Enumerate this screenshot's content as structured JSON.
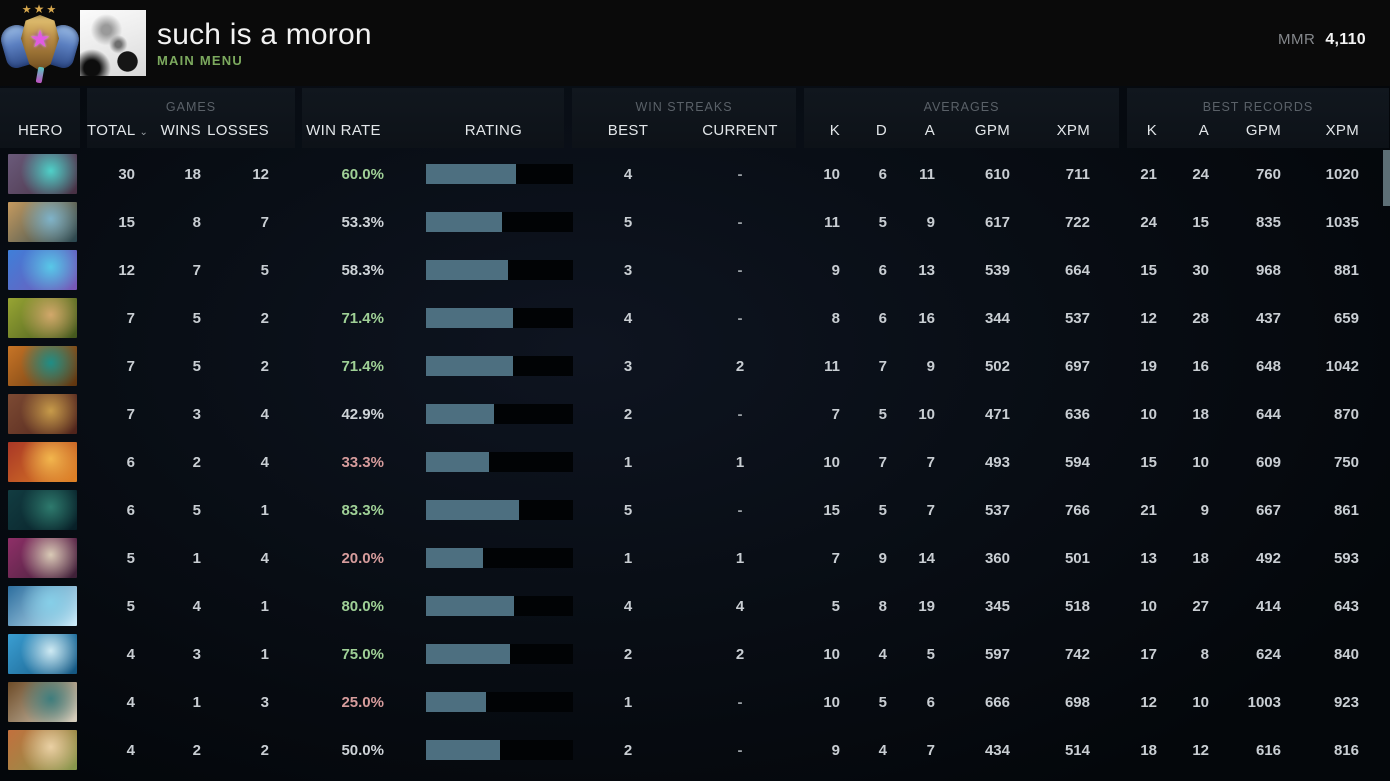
{
  "header": {
    "title": "such is a moron",
    "subtitle": "MAIN MENU",
    "mmr_label": "MMR",
    "mmr_value": "4,110",
    "rank_medal": "ancient-medal-3-stars"
  },
  "colors": {
    "green": "#9fd096",
    "red": "#d69c9c",
    "bar_fill": "#4d6f80",
    "menu_green": "#7ca95e"
  },
  "table": {
    "groups": {
      "games": "GAMES",
      "win_streaks": "WIN STREAKS",
      "averages": "AVERAGES",
      "best_records": "BEST RECORDS"
    },
    "columns": {
      "hero": "HERO",
      "total": "TOTAL",
      "wins": "WINS",
      "losses": "LOSSES",
      "win_rate": "WIN RATE",
      "rating": "RATING",
      "best": "BEST",
      "current": "CURRENT",
      "k": "K",
      "d": "D",
      "a": "A",
      "gpm": "GPM",
      "xpm": "XPM"
    },
    "sorted_by": "total",
    "rows": [
      {
        "hero": "hero-1",
        "portrait": [
          "#6a5a7a",
          "#4fd0c8",
          "#473043"
        ],
        "total": "30",
        "wins": "18",
        "losses": "12",
        "win_rate": "60.0%",
        "tone": "green",
        "rating_pct": 61,
        "streak_best": "4",
        "streak_current": "-",
        "avg_k": "10",
        "avg_d": "6",
        "avg_a": "11",
        "avg_gpm": "610",
        "avg_xpm": "711",
        "best_k": "21",
        "best_a": "24",
        "best_gpm": "760",
        "best_xpm": "1020"
      },
      {
        "hero": "hero-2",
        "portrait": [
          "#c59a5f",
          "#7fb3c9",
          "#27454f"
        ],
        "total": "15",
        "wins": "8",
        "losses": "7",
        "win_rate": "53.3%",
        "tone": "neutral",
        "rating_pct": 52,
        "streak_best": "5",
        "streak_current": "-",
        "avg_k": "11",
        "avg_d": "5",
        "avg_a": "9",
        "avg_gpm": "617",
        "avg_xpm": "722",
        "best_k": "24",
        "best_a": "15",
        "best_gpm": "835",
        "best_xpm": "1035"
      },
      {
        "hero": "hero-3",
        "portrait": [
          "#3f7fd9",
          "#58c8e8",
          "#7a56b5"
        ],
        "total": "12",
        "wins": "7",
        "losses": "5",
        "win_rate": "58.3%",
        "tone": "neutral",
        "rating_pct": 56,
        "streak_best": "3",
        "streak_current": "-",
        "avg_k": "9",
        "avg_d": "6",
        "avg_a": "13",
        "avg_gpm": "539",
        "avg_xpm": "664",
        "best_k": "15",
        "best_a": "30",
        "best_gpm": "968",
        "best_xpm": "881"
      },
      {
        "hero": "hero-4",
        "portrait": [
          "#97a433",
          "#d2a86b",
          "#41551d"
        ],
        "total": "7",
        "wins": "5",
        "losses": "2",
        "win_rate": "71.4%",
        "tone": "green",
        "rating_pct": 59,
        "streak_best": "4",
        "streak_current": "-",
        "avg_k": "8",
        "avg_d": "6",
        "avg_a": "16",
        "avg_gpm": "344",
        "avg_xpm": "537",
        "best_k": "12",
        "best_a": "28",
        "best_gpm": "437",
        "best_xpm": "659"
      },
      {
        "hero": "hero-5",
        "portrait": [
          "#c77426",
          "#1f8e86",
          "#5d340f"
        ],
        "total": "7",
        "wins": "5",
        "losses": "2",
        "win_rate": "71.4%",
        "tone": "green",
        "rating_pct": 59,
        "streak_best": "3",
        "streak_current": "2",
        "avg_k": "11",
        "avg_d": "7",
        "avg_a": "9",
        "avg_gpm": "502",
        "avg_xpm": "697",
        "best_k": "19",
        "best_a": "16",
        "best_gpm": "648",
        "best_xpm": "1042"
      },
      {
        "hero": "hero-6",
        "portrait": [
          "#7c4a33",
          "#c79b4a",
          "#4f231b"
        ],
        "total": "7",
        "wins": "3",
        "losses": "4",
        "win_rate": "42.9%",
        "tone": "neutral",
        "rating_pct": 46,
        "streak_best": "2",
        "streak_current": "-",
        "avg_k": "7",
        "avg_d": "5",
        "avg_a": "10",
        "avg_gpm": "471",
        "avg_xpm": "636",
        "best_k": "10",
        "best_a": "18",
        "best_gpm": "644",
        "best_xpm": "870"
      },
      {
        "hero": "hero-7",
        "portrait": [
          "#a93726",
          "#f2b64d",
          "#e08426"
        ],
        "total": "6",
        "wins": "2",
        "losses": "4",
        "win_rate": "33.3%",
        "tone": "red",
        "rating_pct": 43,
        "streak_best": "1",
        "streak_current": "1",
        "avg_k": "10",
        "avg_d": "7",
        "avg_a": "7",
        "avg_gpm": "493",
        "avg_xpm": "594",
        "best_k": "15",
        "best_a": "10",
        "best_gpm": "609",
        "best_xpm": "750"
      },
      {
        "hero": "hero-8",
        "portrait": [
          "#123c41",
          "#2e7a6d",
          "#071e26"
        ],
        "total": "6",
        "wins": "5",
        "losses": "1",
        "win_rate": "83.3%",
        "tone": "green",
        "rating_pct": 63,
        "streak_best": "5",
        "streak_current": "-",
        "avg_k": "15",
        "avg_d": "5",
        "avg_a": "7",
        "avg_gpm": "537",
        "avg_xpm": "766",
        "best_k": "21",
        "best_a": "9",
        "best_gpm": "667",
        "best_xpm": "861"
      },
      {
        "hero": "hero-9",
        "portrait": [
          "#8e2f67",
          "#d9cab6",
          "#3c2036"
        ],
        "total": "5",
        "wins": "1",
        "losses": "4",
        "win_rate": "20.0%",
        "tone": "red",
        "rating_pct": 39,
        "streak_best": "1",
        "streak_current": "1",
        "avg_k": "7",
        "avg_d": "9",
        "avg_a": "14",
        "avg_gpm": "360",
        "avg_xpm": "501",
        "best_k": "13",
        "best_a": "18",
        "best_gpm": "492",
        "best_xpm": "593"
      },
      {
        "hero": "hero-10",
        "portrait": [
          "#2d6e9e",
          "#86cfe8",
          "#cfeefb"
        ],
        "total": "5",
        "wins": "4",
        "losses": "1",
        "win_rate": "80.0%",
        "tone": "green",
        "rating_pct": 60,
        "streak_best": "4",
        "streak_current": "4",
        "avg_k": "5",
        "avg_d": "8",
        "avg_a": "19",
        "avg_gpm": "345",
        "avg_xpm": "518",
        "best_k": "10",
        "best_a": "27",
        "best_gpm": "414",
        "best_xpm": "643"
      },
      {
        "hero": "hero-11",
        "portrait": [
          "#3a9ed2",
          "#cfeaf3",
          "#14557f"
        ],
        "total": "4",
        "wins": "3",
        "losses": "1",
        "win_rate": "75.0%",
        "tone": "green",
        "rating_pct": 57,
        "streak_best": "2",
        "streak_current": "2",
        "avg_k": "10",
        "avg_d": "4",
        "avg_a": "5",
        "avg_gpm": "597",
        "avg_xpm": "742",
        "best_k": "17",
        "best_a": "8",
        "best_gpm": "624",
        "best_xpm": "840"
      },
      {
        "hero": "hero-12",
        "portrait": [
          "#6e4c28",
          "#3e7d7d",
          "#d9d2c2"
        ],
        "total": "4",
        "wins": "1",
        "losses": "3",
        "win_rate": "25.0%",
        "tone": "red",
        "rating_pct": 41,
        "streak_best": "1",
        "streak_current": "-",
        "avg_k": "10",
        "avg_d": "5",
        "avg_a": "6",
        "avg_gpm": "666",
        "avg_xpm": "698",
        "best_k": "12",
        "best_a": "10",
        "best_gpm": "1003",
        "best_xpm": "923"
      },
      {
        "hero": "hero-13",
        "portrait": [
          "#c2703d",
          "#ead0a4",
          "#85994d"
        ],
        "total": "4",
        "wins": "2",
        "losses": "2",
        "win_rate": "50.0%",
        "tone": "neutral",
        "rating_pct": 50,
        "streak_best": "2",
        "streak_current": "-",
        "avg_k": "9",
        "avg_d": "4",
        "avg_a": "7",
        "avg_gpm": "434",
        "avg_xpm": "514",
        "best_k": "18",
        "best_a": "12",
        "best_gpm": "616",
        "best_xpm": "816"
      }
    ]
  }
}
